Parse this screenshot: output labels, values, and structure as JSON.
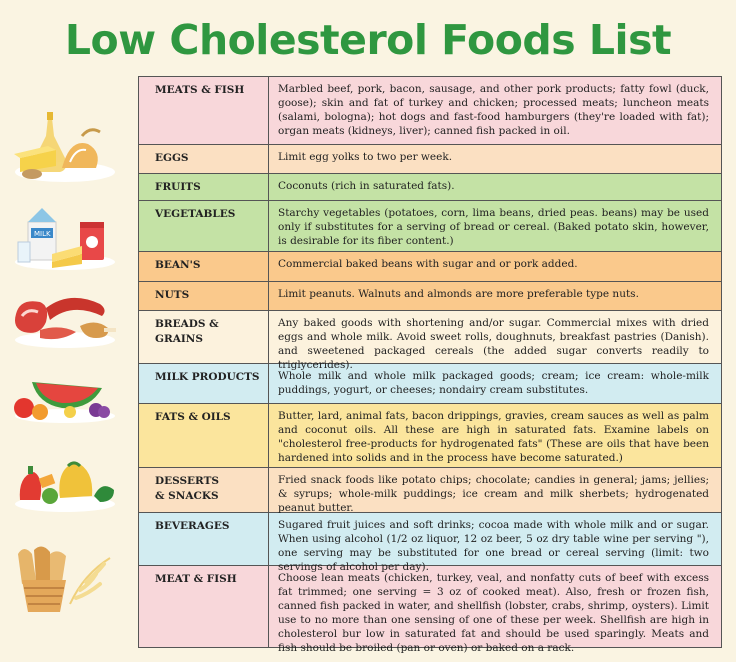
{
  "title": "Low Cholesterol Foods List",
  "rows": [
    {
      "category": "MEATS & FISH",
      "text": "Marbled beef, pork, bacon, sausage, and other pork products; fatty fowl (duck, goose); skin and fat of turkey and chicken; processed meats; luncheon meats (salami, bologna); hot dogs and fast-food hamburgers (they're loaded with fat); organ meats (kidneys, liver); canned fish packed  in oil."
    },
    {
      "category": "EGGS",
      "text": "Limit egg yolks to two per week."
    },
    {
      "category": "FRUITS",
      "text": "Coconuts (rich in saturated fats)."
    },
    {
      "category": "VEGETABLES",
      "text": "Starchy vegetables (potatoes, corn, lima beans, dried peas. beans) may be used only if substitutes for a serving of bread or cereal. (Baked potato skin, however, is desirable for its fiber content.)"
    },
    {
      "category": "BEAN'S",
      "text": "Commercial baked beans with sugar and or pork added."
    },
    {
      "category": "NUTS",
      "text": "Limit peanuts. Walnuts and almonds are more preferable type nuts."
    },
    {
      "category": "BREADS & GRAINS",
      "text": "Any baked goods with shortening and/or sugar. Commercial mixes with dried eggs and whole milk. Avoid sweet rolls, doughnuts, breakfast pastries (Danish). and sweetened packaged cereals (the added sugar converts readily to triglycerides)."
    },
    {
      "category": "MILK PRODUCTS",
      "text": "Whole milk and whole milk packaged goods; cream; ice cream: whole-milk puddings, yogurt, or cheeses; nondairy cream substitutes."
    },
    {
      "category": "FATS & OILS",
      "text": "Butter, lard, animal fats, bacon drippings, gravies, cream sauces as well as palm and coconut oils. All these are high in saturated fats. Examine labels on \"cholesterol free-products for hydrogenated fats\" (These are oils that have been hardened into solids and in the process have become saturated.)"
    },
    {
      "category": "DESSERTS & SNACKS",
      "category_line1": "DESSERTS",
      "category_line2": "& SNACKS",
      "text": "Fried snack foods like potato chips; chocolate; candies in general; jams; jellies; & syrups; whole-milk puddings; ice cream and milk sherbets; hydrogenated peanut butter."
    },
    {
      "category": "BEVERAGES",
      "text": "Sugared fruit juices and soft drinks; cocoa made with whole milk and or sugar. When using alcohol (1/2 oz liquor, 12 oz beer, 5 oz dry table wine per serving \"), one serving may be substituted for one bread or cereal serving (limit: two servings of alcohol per day)."
    },
    {
      "category": "MEAT & FISH",
      "text": "Choose lean meats (chicken, turkey, veal, and nonfatty cuts of beef with excess fat trimmed; one serving = 3 oz of cooked meat). Also, fresh or frozen fish, canned fish packed in water, and shellfish (lobster, crabs, shrimp, oysters). Limit use to no more than one sensing of one of these per week. Shellfish are high in cholesterol bur low in saturated fat and should be used sparingly. Meats and fish should be broiled (pan or oven) or baked on a rack."
    }
  ],
  "illustration_labels": {
    "milk_carton": "MILK"
  }
}
